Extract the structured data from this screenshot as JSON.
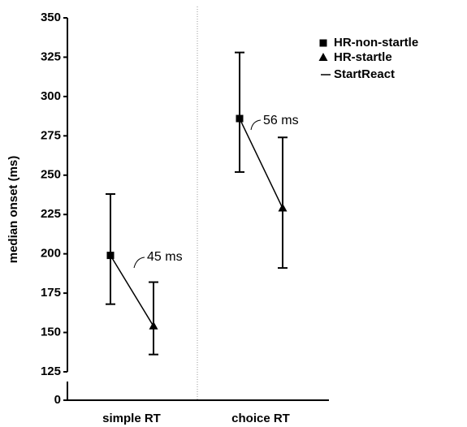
{
  "chart_data": {
    "type": "errorbar",
    "y_label": "median onset (ms)",
    "categories": [
      "simple RT",
      "choice RT"
    ],
    "series": [
      {
        "name": "HR-non-startle",
        "marker": "square",
        "color": "#000000",
        "values": [
          199,
          286
        ],
        "error_minus": [
          31,
          34
        ],
        "error_plus": [
          39,
          42
        ]
      },
      {
        "name": "HR-startle",
        "marker": "triangle",
        "color": "#000000",
        "values": [
          154,
          229
        ],
        "error_minus": [
          18,
          38
        ],
        "error_plus": [
          28,
          45
        ]
      }
    ],
    "connector": {
      "name": "StartReact",
      "color": "#000000"
    },
    "annotations": [
      "45 ms",
      "56 ms"
    ],
    "ylim": [
      125,
      350
    ],
    "yticks": [
      125,
      150,
      175,
      200,
      225,
      250,
      275,
      300,
      325,
      350
    ],
    "yticks_below_break": [
      0
    ],
    "legend": "upper right"
  }
}
